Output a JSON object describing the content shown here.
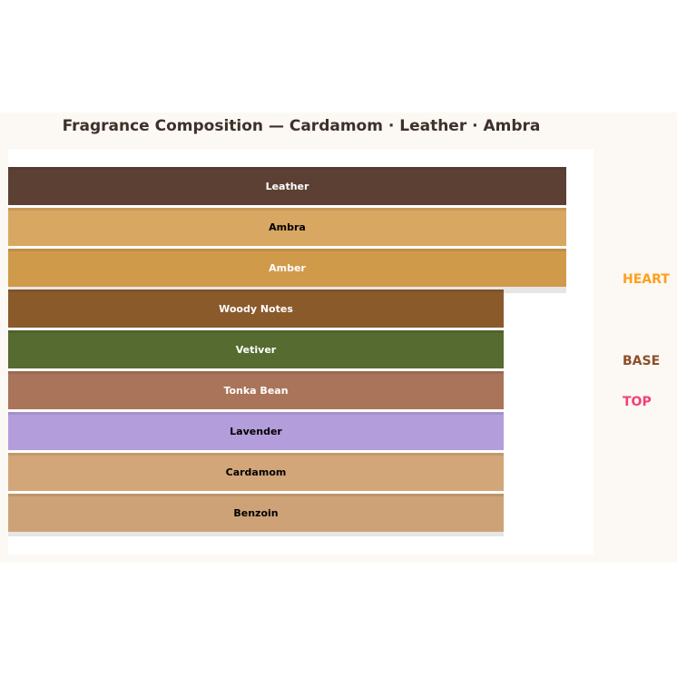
{
  "title": "Fragrance Composition — Cardamom · Leather · Ambra",
  "layers": [
    {
      "label": "Leather",
      "color": "#5c4033",
      "text_color": "#ffffff",
      "group": "wide"
    },
    {
      "label": "Ambra",
      "color": "#d8a761",
      "text_color": "#000000",
      "group": "wide"
    },
    {
      "label": "Amber",
      "color": "#d09a4b",
      "text_color": "#ffffff",
      "group": "wide"
    },
    {
      "label": "Woody Notes",
      "color": "#8b5a2b",
      "text_color": "#ffffff",
      "group": "narrow"
    },
    {
      "label": "Vetiver",
      "color": "#556b2f",
      "text_color": "#ffffff",
      "group": "narrow"
    },
    {
      "label": "Tonka Bean",
      "color": "#a9745a",
      "text_color": "#ffffff",
      "group": "narrow"
    },
    {
      "label": "Lavender",
      "color": "#b39ddb",
      "text_color": "#000000",
      "group": "narrow"
    },
    {
      "label": "Cardamom",
      "color": "#d2a679",
      "text_color": "#000000",
      "group": "narrow"
    },
    {
      "label": "Benzoin",
      "color": "#cea277",
      "text_color": "#000000",
      "group": "narrow"
    }
  ],
  "tiers": [
    {
      "label": "HEART",
      "color": "#ff9f1c"
    },
    {
      "label": "BASE",
      "color": "#8b4f2a"
    },
    {
      "label": "TOP",
      "color": "#f0407a"
    }
  ]
}
